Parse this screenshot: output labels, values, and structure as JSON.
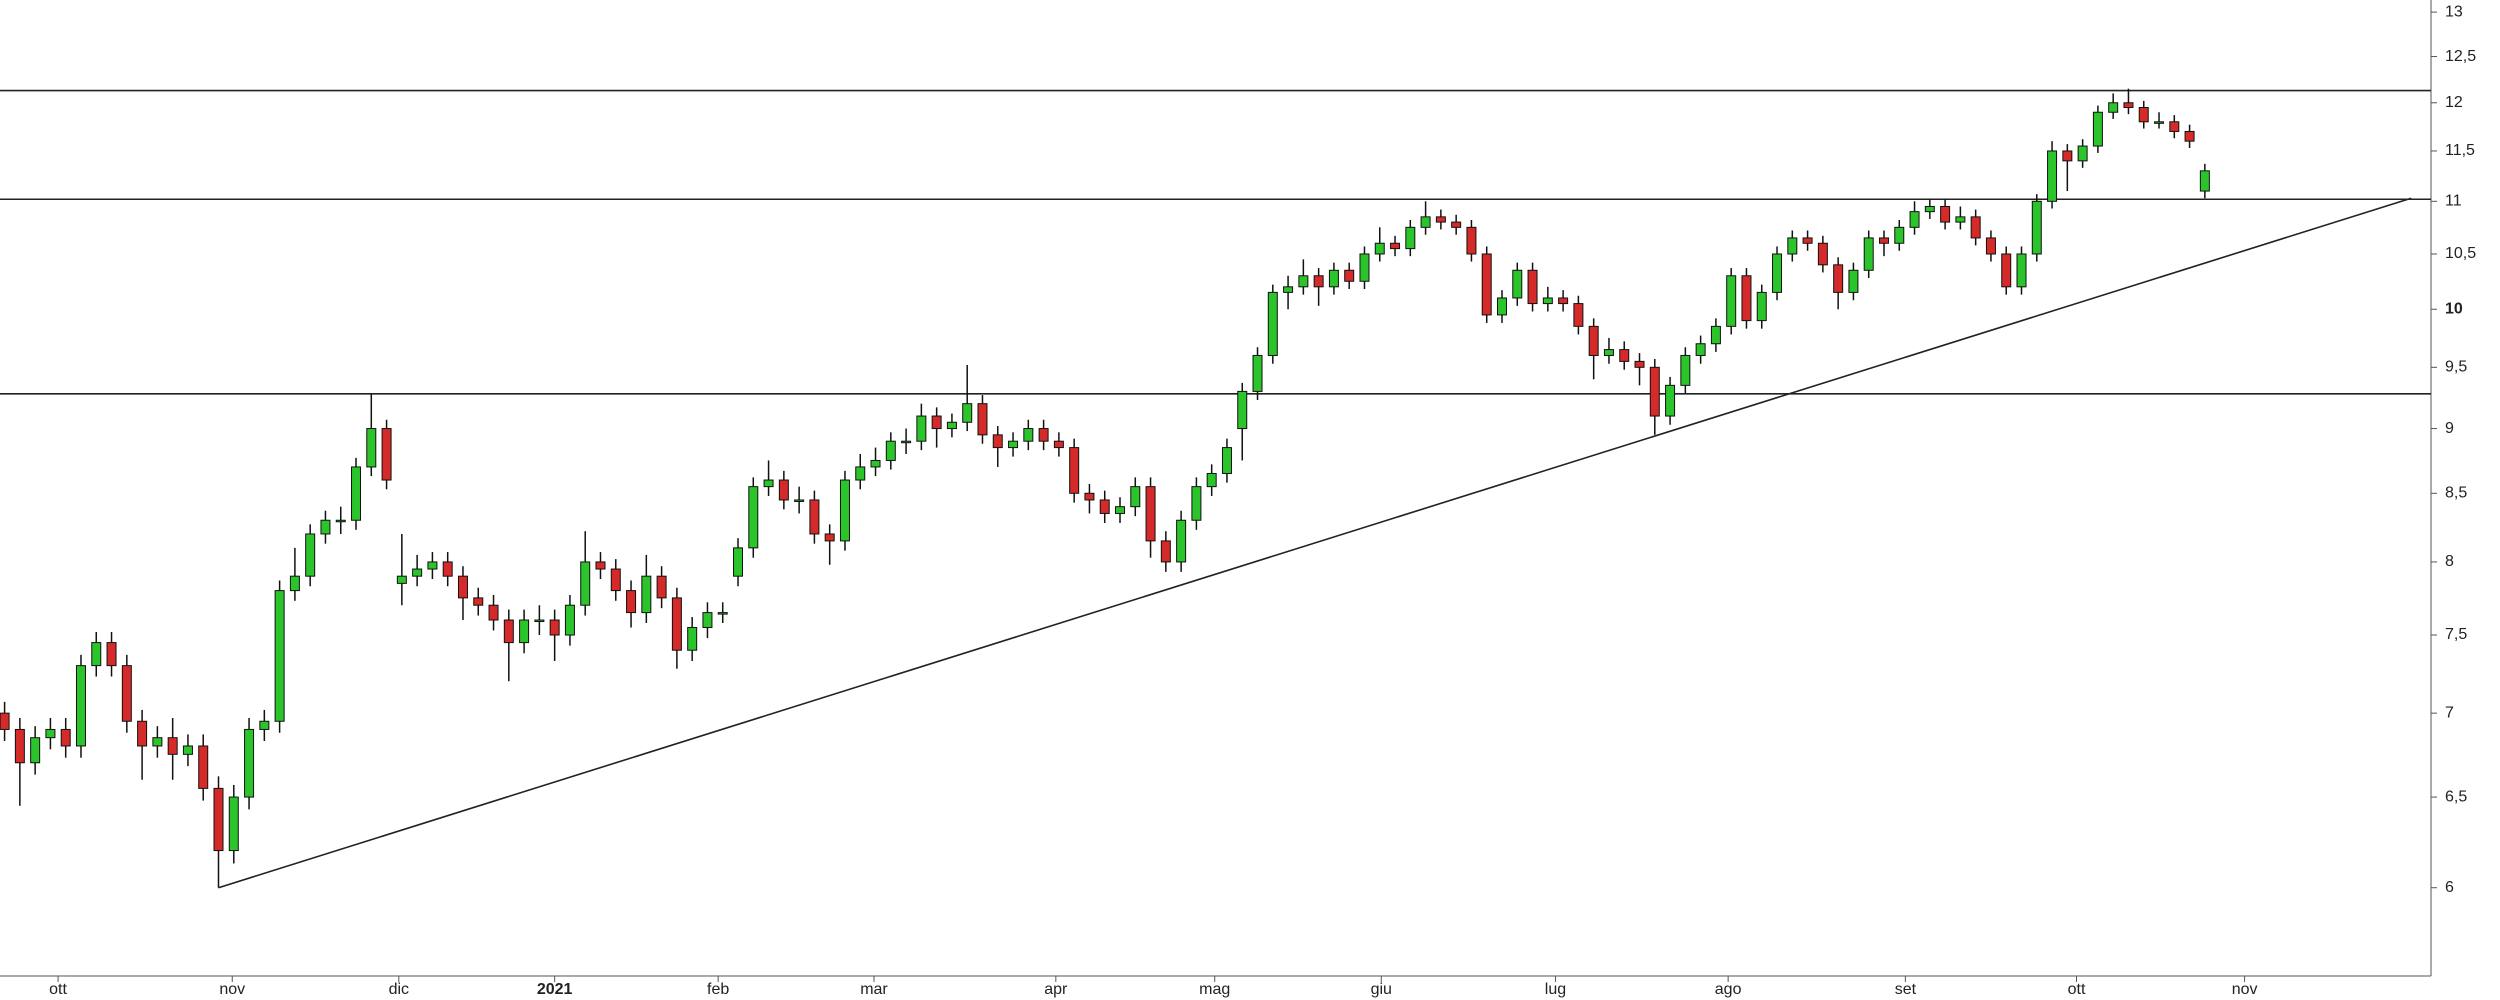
{
  "chart_data": {
    "type": "candlestick",
    "log": true,
    "up_color": "#2bc42b",
    "down_color": "#d42a2a",
    "ylim": [
      5.55,
      13.14
    ],
    "yticks": [
      6,
      {
        "value": 6.5,
        "label": "6,5"
      },
      7,
      {
        "value": 7.5,
        "label": "7,5"
      },
      8,
      {
        "value": 8.5,
        "label": "8,5"
      },
      9,
      {
        "value": 9.5,
        "label": "9,5"
      },
      10,
      {
        "value": 10.5,
        "label": "10,5"
      },
      11,
      {
        "value": 11.5,
        "label": "11,5"
      },
      12,
      {
        "value": 12.5,
        "label": "12,5"
      },
      13
    ],
    "xlim": [
      -0.3,
      158.8
    ],
    "xticks": [
      {
        "value": 3.5,
        "label": "ott"
      },
      {
        "value": 14.9,
        "label": "nov"
      },
      {
        "value": 25.8,
        "label": "dic"
      },
      {
        "value": 36,
        "label": "2021"
      },
      {
        "value": 46.7,
        "label": "feb"
      },
      {
        "value": 56.9,
        "label": "mar"
      },
      {
        "value": 68.8,
        "label": "apr"
      },
      {
        "value": 79.2,
        "label": "mag"
      },
      {
        "value": 90.1,
        "label": "giu"
      },
      {
        "value": 101.5,
        "label": "lug"
      },
      {
        "value": 112.8,
        "label": "ago"
      },
      {
        "value": 124.4,
        "label": "set"
      },
      {
        "value": 135.6,
        "label": "ott"
      },
      {
        "value": 146.6,
        "label": "nov"
      }
    ],
    "hlines": [
      12.13,
      11.02,
      9.28
    ],
    "trendline": {
      "from": [
        14,
        6.0
      ],
      "to": [
        157.5,
        11.03
      ]
    },
    "ohlc": [
      [
        7.0,
        7.07,
        6.83,
        6.9
      ],
      [
        6.9,
        6.97,
        6.45,
        6.7
      ],
      [
        6.7,
        6.92,
        6.63,
        6.85
      ],
      [
        6.85,
        6.97,
        6.78,
        6.9
      ],
      [
        6.9,
        6.97,
        6.73,
        6.8
      ],
      [
        6.8,
        7.37,
        6.73,
        7.3
      ],
      [
        7.3,
        7.52,
        7.23,
        7.45
      ],
      [
        7.45,
        7.52,
        7.23,
        7.3
      ],
      [
        7.3,
        7.37,
        6.88,
        6.95
      ],
      [
        6.95,
        7.02,
        6.6,
        6.8
      ],
      [
        6.8,
        6.92,
        6.73,
        6.85
      ],
      [
        6.85,
        6.97,
        6.6,
        6.75
      ],
      [
        6.75,
        6.87,
        6.68,
        6.8
      ],
      [
        6.8,
        6.87,
        6.48,
        6.55
      ],
      [
        6.55,
        6.62,
        6.0,
        6.2
      ],
      [
        6.2,
        6.57,
        6.13,
        6.5
      ],
      [
        6.5,
        6.97,
        6.43,
        6.9
      ],
      [
        6.9,
        7.02,
        6.83,
        6.95
      ],
      [
        6.95,
        7.87,
        6.88,
        7.8
      ],
      [
        7.8,
        8.1,
        7.73,
        7.9
      ],
      [
        7.9,
        8.27,
        7.83,
        8.2
      ],
      [
        8.2,
        8.37,
        8.13,
        8.3
      ],
      [
        8.3,
        8.4,
        8.2,
        8.3
      ],
      [
        8.3,
        8.77,
        8.23,
        8.7
      ],
      [
        8.7,
        9.28,
        8.63,
        9.0
      ],
      [
        9.0,
        9.07,
        8.53,
        8.6
      ],
      [
        7.85,
        8.2,
        7.7,
        7.9
      ],
      [
        7.9,
        8.05,
        7.83,
        7.95
      ],
      [
        7.95,
        8.07,
        7.88,
        8.0
      ],
      [
        8.0,
        8.07,
        7.83,
        7.9
      ],
      [
        7.9,
        7.97,
        7.6,
        7.75
      ],
      [
        7.75,
        7.82,
        7.63,
        7.7
      ],
      [
        7.7,
        7.77,
        7.53,
        7.6
      ],
      [
        7.6,
        7.67,
        7.2,
        7.45
      ],
      [
        7.45,
        7.67,
        7.38,
        7.6
      ],
      [
        7.6,
        7.7,
        7.5,
        7.6
      ],
      [
        7.6,
        7.67,
        7.33,
        7.5
      ],
      [
        7.5,
        7.77,
        7.43,
        7.7
      ],
      [
        7.7,
        8.22,
        7.63,
        8.0
      ],
      [
        8.0,
        8.07,
        7.88,
        7.95
      ],
      [
        7.95,
        8.02,
        7.73,
        7.8
      ],
      [
        7.8,
        7.87,
        7.55,
        7.65
      ],
      [
        7.65,
        8.05,
        7.58,
        7.9
      ],
      [
        7.9,
        7.97,
        7.68,
        7.75
      ],
      [
        7.75,
        7.82,
        7.28,
        7.4
      ],
      [
        7.4,
        7.62,
        7.33,
        7.55
      ],
      [
        7.55,
        7.72,
        7.48,
        7.65
      ],
      [
        7.65,
        7.72,
        7.58,
        7.65
      ],
      [
        7.9,
        8.17,
        7.83,
        8.1
      ],
      [
        8.1,
        8.62,
        8.03,
        8.55
      ],
      [
        8.55,
        8.75,
        8.48,
        8.6
      ],
      [
        8.6,
        8.67,
        8.38,
        8.45
      ],
      [
        8.45,
        8.55,
        8.35,
        8.45
      ],
      [
        8.45,
        8.52,
        8.13,
        8.2
      ],
      [
        8.2,
        8.27,
        7.98,
        8.15
      ],
      [
        8.15,
        8.67,
        8.08,
        8.6
      ],
      [
        8.6,
        8.8,
        8.53,
        8.7
      ],
      [
        8.7,
        8.85,
        8.63,
        8.75
      ],
      [
        8.75,
        8.97,
        8.68,
        8.9
      ],
      [
        8.9,
        9.0,
        8.8,
        8.9
      ],
      [
        8.9,
        9.2,
        8.83,
        9.1
      ],
      [
        9.1,
        9.17,
        8.85,
        9.0
      ],
      [
        9.0,
        9.12,
        8.93,
        9.05
      ],
      [
        9.05,
        9.52,
        8.98,
        9.2
      ],
      [
        9.2,
        9.27,
        8.88,
        8.95
      ],
      [
        8.95,
        9.02,
        8.7,
        8.85
      ],
      [
        8.85,
        8.97,
        8.78,
        8.9
      ],
      [
        8.9,
        9.07,
        8.83,
        9.0
      ],
      [
        9.0,
        9.07,
        8.83,
        8.9
      ],
      [
        8.9,
        8.97,
        8.78,
        8.85
      ],
      [
        8.85,
        8.92,
        8.43,
        8.5
      ],
      [
        8.5,
        8.57,
        8.35,
        8.45
      ],
      [
        8.45,
        8.52,
        8.28,
        8.35
      ],
      [
        8.35,
        8.47,
        8.28,
        8.4
      ],
      [
        8.4,
        8.62,
        8.33,
        8.55
      ],
      [
        8.55,
        8.62,
        8.03,
        8.15
      ],
      [
        8.15,
        8.22,
        7.93,
        8.0
      ],
      [
        8.0,
        8.37,
        7.93,
        8.3
      ],
      [
        8.3,
        8.62,
        8.23,
        8.55
      ],
      [
        8.55,
        8.72,
        8.48,
        8.65
      ],
      [
        8.65,
        8.92,
        8.58,
        8.85
      ],
      [
        9.0,
        9.37,
        8.75,
        9.3
      ],
      [
        9.3,
        9.67,
        9.23,
        9.6
      ],
      [
        9.6,
        10.22,
        9.53,
        10.15
      ],
      [
        10.15,
        10.3,
        10.0,
        10.2
      ],
      [
        10.2,
        10.45,
        10.13,
        10.3
      ],
      [
        10.3,
        10.37,
        10.03,
        10.2
      ],
      [
        10.2,
        10.42,
        10.13,
        10.35
      ],
      [
        10.35,
        10.42,
        10.18,
        10.25
      ],
      [
        10.25,
        10.57,
        10.18,
        10.5
      ],
      [
        10.5,
        10.75,
        10.43,
        10.6
      ],
      [
        10.6,
        10.67,
        10.48,
        10.55
      ],
      [
        10.55,
        10.82,
        10.48,
        10.75
      ],
      [
        10.75,
        11.0,
        10.68,
        10.85
      ],
      [
        10.85,
        10.92,
        10.73,
        10.8
      ],
      [
        10.8,
        10.87,
        10.68,
        10.75
      ],
      [
        10.75,
        10.82,
        10.43,
        10.5
      ],
      [
        10.5,
        10.57,
        9.88,
        9.95
      ],
      [
        9.95,
        10.17,
        9.88,
        10.1
      ],
      [
        10.1,
        10.42,
        10.03,
        10.35
      ],
      [
        10.35,
        10.42,
        9.98,
        10.05
      ],
      [
        10.05,
        10.2,
        9.98,
        10.1
      ],
      [
        10.1,
        10.17,
        9.98,
        10.05
      ],
      [
        10.05,
        10.12,
        9.78,
        9.85
      ],
      [
        9.85,
        9.92,
        9.4,
        9.6
      ],
      [
        9.6,
        9.75,
        9.53,
        9.65
      ],
      [
        9.65,
        9.72,
        9.48,
        9.55
      ],
      [
        9.55,
        9.62,
        9.35,
        9.5
      ],
      [
        9.5,
        9.57,
        8.95,
        9.1
      ],
      [
        9.1,
        9.42,
        9.03,
        9.35
      ],
      [
        9.35,
        9.67,
        9.28,
        9.6
      ],
      [
        9.6,
        9.77,
        9.53,
        9.7
      ],
      [
        9.7,
        9.92,
        9.63,
        9.85
      ],
      [
        9.85,
        10.37,
        9.78,
        10.3
      ],
      [
        10.3,
        10.37,
        9.83,
        9.9
      ],
      [
        9.9,
        10.22,
        9.83,
        10.15
      ],
      [
        10.15,
        10.57,
        10.08,
        10.5
      ],
      [
        10.5,
        10.72,
        10.43,
        10.65
      ],
      [
        10.65,
        10.72,
        10.53,
        10.6
      ],
      [
        10.6,
        10.67,
        10.33,
        10.4
      ],
      [
        10.4,
        10.47,
        10.0,
        10.15
      ],
      [
        10.15,
        10.42,
        10.08,
        10.35
      ],
      [
        10.35,
        10.72,
        10.28,
        10.65
      ],
      [
        10.65,
        10.72,
        10.48,
        10.6
      ],
      [
        10.6,
        10.82,
        10.53,
        10.75
      ],
      [
        10.75,
        11.0,
        10.68,
        10.9
      ],
      [
        10.9,
        11.02,
        10.83,
        10.95
      ],
      [
        10.95,
        11.02,
        10.73,
        10.8
      ],
      [
        10.8,
        10.95,
        10.73,
        10.85
      ],
      [
        10.85,
        10.92,
        10.58,
        10.65
      ],
      [
        10.65,
        10.72,
        10.43,
        10.5
      ],
      [
        10.5,
        10.57,
        10.13,
        10.2
      ],
      [
        10.2,
        10.57,
        10.13,
        10.5
      ],
      [
        10.5,
        11.07,
        10.43,
        11.0
      ],
      [
        11.0,
        11.6,
        10.93,
        11.5
      ],
      [
        11.5,
        11.57,
        11.1,
        11.4
      ],
      [
        11.4,
        11.62,
        11.33,
        11.55
      ],
      [
        11.55,
        11.97,
        11.48,
        11.9
      ],
      [
        11.9,
        12.1,
        11.83,
        12.0
      ],
      [
        12.0,
        12.15,
        11.88,
        11.95
      ],
      [
        11.95,
        12.02,
        11.73,
        11.8
      ],
      [
        11.8,
        11.9,
        11.73,
        11.8
      ],
      [
        11.8,
        11.87,
        11.63,
        11.7
      ],
      [
        11.7,
        11.77,
        11.53,
        11.6
      ],
      [
        11.1,
        11.37,
        11.03,
        11.3
      ]
    ]
  }
}
